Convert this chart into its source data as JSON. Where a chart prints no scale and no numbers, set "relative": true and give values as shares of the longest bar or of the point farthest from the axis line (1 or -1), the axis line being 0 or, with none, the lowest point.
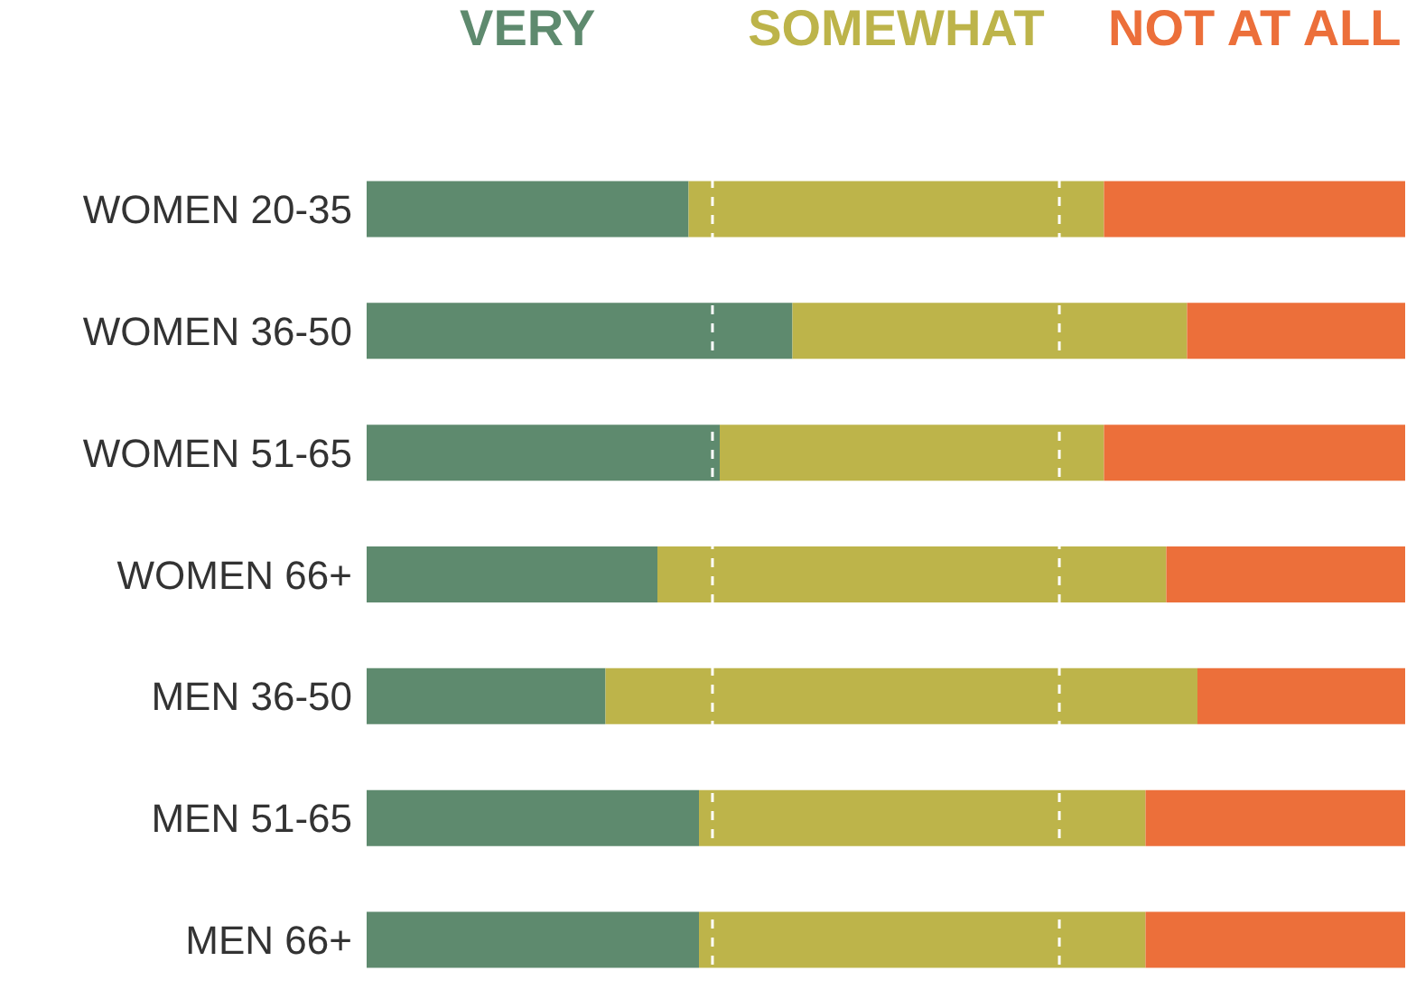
{
  "chart_data": {
    "type": "bar",
    "orientation": "horizontal",
    "stacked": true,
    "relative": true,
    "legend": "top",
    "grid": false,
    "categories": [
      "WOMEN 20-35",
      "WOMEN 36-50",
      "WOMEN 51-65",
      "WOMEN 66+",
      "MEN 36-50",
      "MEN 51-65",
      "MEN 66+"
    ],
    "series": [
      {
        "name": "VERY",
        "color": "#5e8a6e",
        "values": [
          0.31,
          0.41,
          0.34,
          0.28,
          0.23,
          0.32,
          0.32
        ]
      },
      {
        "name": "SOMEWHAT",
        "color": "#bdb44a",
        "values": [
          0.4,
          0.38,
          0.37,
          0.49,
          0.57,
          0.43,
          0.43
        ]
      },
      {
        "name": "NOT AT ALL",
        "color": "#ec6f3a",
        "values": [
          0.29,
          0.21,
          0.29,
          0.23,
          0.2,
          0.25,
          0.25
        ]
      }
    ],
    "ref_lines": [
      {
        "axis": "x",
        "value": 0.333,
        "color": "#ffffff",
        "line_style": "dashed"
      },
      {
        "axis": "x",
        "value": 0.667,
        "color": "#ffffff",
        "line_style": "dashed"
      }
    ]
  }
}
